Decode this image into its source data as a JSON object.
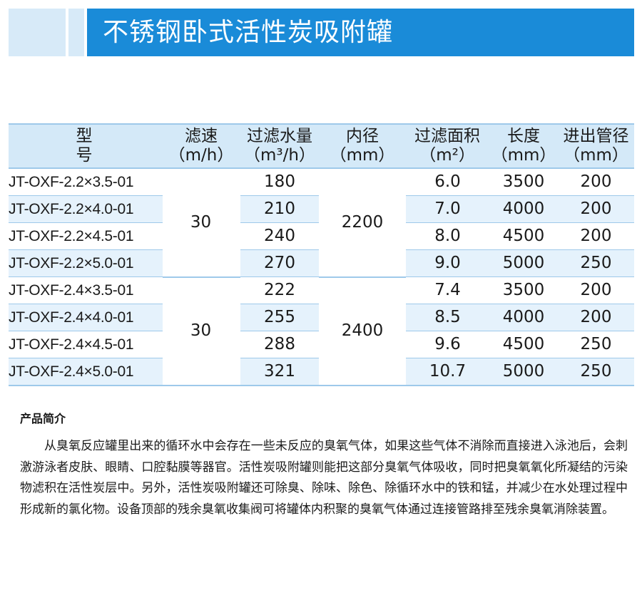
{
  "title": "不锈钢卧式活性炭吸附罐",
  "colors": {
    "title_bg": "#1a8bd8",
    "header_bg": "#d4e9f8",
    "row_shade": "#e5f2fc",
    "rule": "#9ec9ea"
  },
  "table": {
    "headers": [
      {
        "main": "型号",
        "unit": ""
      },
      {
        "main": "滤速",
        "unit": "（m/h）"
      },
      {
        "main": "过滤水量",
        "unit": "（m³/h）"
      },
      {
        "main": "内径",
        "unit": "（mm）"
      },
      {
        "main": "过滤面积",
        "unit": "（m²）"
      },
      {
        "main": "长度",
        "unit": "（mm）"
      },
      {
        "main": "进出管径",
        "unit": "（mm）"
      }
    ],
    "groups": [
      {
        "filter_speed": "30",
        "inner_diameter": "2200",
        "rows": [
          {
            "model": "JT-OXF-2.2×3.5-01",
            "flow": "180",
            "area": "6.0",
            "length": "3500",
            "pipe": "200"
          },
          {
            "model": "JT-OXF-2.2×4.0-01",
            "flow": "210",
            "area": "7.0",
            "length": "4000",
            "pipe": "200"
          },
          {
            "model": "JT-OXF-2.2×4.5-01",
            "flow": "240",
            "area": "8.0",
            "length": "4500",
            "pipe": "200"
          },
          {
            "model": "JT-OXF-2.2×5.0-01",
            "flow": "270",
            "area": "9.0",
            "length": "5000",
            "pipe": "250"
          }
        ]
      },
      {
        "filter_speed": "30",
        "inner_diameter": "2400",
        "rows": [
          {
            "model": "JT-OXF-2.4×3.5-01",
            "flow": "222",
            "area": "7.4",
            "length": "3500",
            "pipe": "200"
          },
          {
            "model": "JT-OXF-2.4×4.0-01",
            "flow": "255",
            "area": "8.5",
            "length": "4000",
            "pipe": "200"
          },
          {
            "model": "JT-OXF-2.4×4.5-01",
            "flow": "288",
            "area": "9.6",
            "length": "4500",
            "pipe": "250"
          },
          {
            "model": "JT-OXF-2.4×5.0-01",
            "flow": "321",
            "area": "10.7",
            "length": "5000",
            "pipe": "250"
          }
        ]
      }
    ]
  },
  "intro": {
    "heading": "产品简介",
    "text": "从臭氧反应罐里出来的循环水中会存在一些未反应的臭氧气体，如果这些气体不消除而直接进入泳池后，会刺激游泳者皮肤、眼睛、口腔黏膜等器官。活性炭吸附罐则能把这部分臭氧气体吸收，同时把臭氧氧化所凝结的污染物滤积在活性炭层中。另外，活性炭吸附罐还可除臭、除味、除色、除循环水中的铁和锰，并减少在水处理过程中形成新的氯化物。设备顶部的残余臭氧收集阀可将罐体内积聚的臭氧气体通过连接管路排至残余臭氧消除装置。"
  }
}
